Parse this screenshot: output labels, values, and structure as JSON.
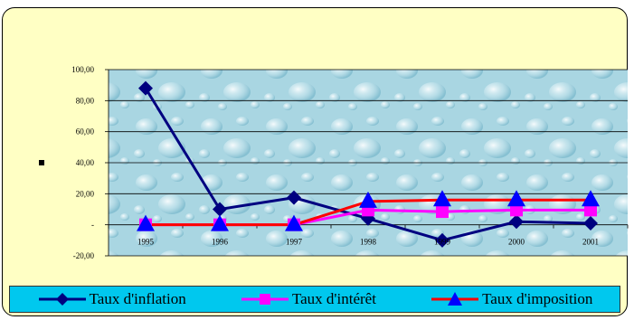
{
  "chart_data": {
    "type": "line",
    "categories": [
      "1995",
      "1996",
      "1997",
      "1998",
      "1999",
      "2000",
      "2001"
    ],
    "ylim": [
      -20,
      100
    ],
    "yticks": [
      {
        "value": 100,
        "label": "100,00"
      },
      {
        "value": 80,
        "label": "80,00"
      },
      {
        "value": 60,
        "label": "60,00"
      },
      {
        "value": 40,
        "label": "40,00"
      },
      {
        "value": 20,
        "label": "20,00"
      },
      {
        "value": 0,
        "label": "-"
      },
      {
        "value": -20,
        "label": "-20,00"
      }
    ],
    "grid": true,
    "legend_position": "bottom",
    "series": [
      {
        "name": "Taux d'inflation",
        "color": "#000080",
        "marker": "diamond",
        "values": [
          88,
          10,
          17.5,
          4,
          -10,
          2,
          1
        ]
      },
      {
        "name": "Taux d'intérêt",
        "color": "#ff00ff",
        "marker": "square",
        "values": [
          0,
          0,
          0,
          9.5,
          8.5,
          9.5,
          9.5
        ]
      },
      {
        "name": "Taux d'imposition",
        "color": "#ff0000",
        "marker": "triangle",
        "marker_color": "#0000ff",
        "values": [
          0,
          0,
          0,
          15,
          16,
          16,
          16
        ]
      }
    ]
  },
  "legend": {
    "item0": "Taux d'inflation",
    "item1": "Taux d'intérêt",
    "item2": "Taux d'imposition"
  }
}
